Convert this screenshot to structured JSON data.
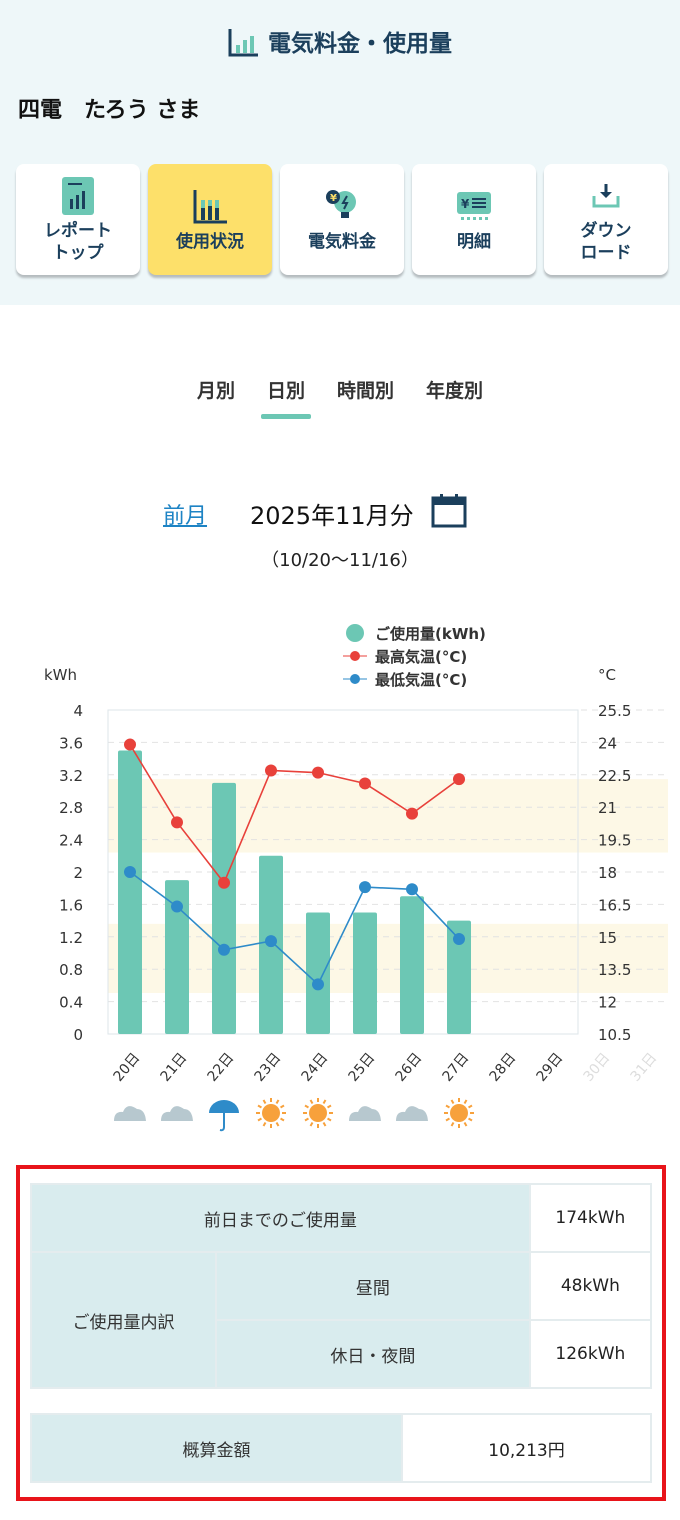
{
  "header": {
    "title": "電気料金・使用量",
    "user": "四電　たろう さま"
  },
  "nav": [
    {
      "label": "レポート\nトップ",
      "icon": "report-icon"
    },
    {
      "label": "使用状況",
      "icon": "usage-chart-icon",
      "active": true
    },
    {
      "label": "電気料金",
      "icon": "bulb-yen-icon"
    },
    {
      "label": "明細",
      "icon": "statement-icon"
    },
    {
      "label": "ダウン\nロード",
      "icon": "download-icon"
    }
  ],
  "tabs": [
    {
      "label": "月別"
    },
    {
      "label": "日別",
      "active": true
    },
    {
      "label": "時間別"
    },
    {
      "label": "年度別"
    }
  ],
  "period": {
    "prev": "前月",
    "month": "2025年11月分",
    "range": "（10/20〜11/16）"
  },
  "chart_data": {
    "type": "bar+line",
    "categories": [
      "20日",
      "21日",
      "22日",
      "23日",
      "24日",
      "25日",
      "26日",
      "27日",
      "28日",
      "29日",
      "30日",
      "31日"
    ],
    "series": [
      {
        "name": "ご使用量(kWh)",
        "type": "bar",
        "axis": "left",
        "color": "#6cc7b4",
        "values": [
          3.5,
          1.9,
          3.1,
          2.2,
          1.5,
          1.5,
          1.7,
          1.4,
          null,
          null,
          null,
          null
        ]
      },
      {
        "name": "最高気温(°C)",
        "type": "line",
        "axis": "right",
        "color": "#e8413b",
        "values": [
          23.9,
          20.3,
          17.5,
          22.7,
          22.6,
          22.1,
          20.7,
          22.3,
          null,
          null,
          null,
          null
        ]
      },
      {
        "name": "最低気温(°C)",
        "type": "line",
        "axis": "right",
        "color": "#2e8bc9",
        "values": [
          18.0,
          16.4,
          14.4,
          14.8,
          12.8,
          17.3,
          17.2,
          14.9,
          null,
          null,
          null,
          null
        ]
      }
    ],
    "ylabel_left": "kWh",
    "ylabel_right": "°C",
    "ylim_left": [
      0,
      4
    ],
    "yticks_left": [
      "0",
      "0.4",
      "0.8",
      "1.2",
      "1.6",
      "2",
      "2.4",
      "2.8",
      "3.2",
      "3.6",
      "4"
    ],
    "ylim_right": [
      10.5,
      25.5
    ],
    "yticks_right": [
      "10.5",
      "12",
      "13.5",
      "15",
      "16.5",
      "18",
      "19.5",
      "21",
      "22.5",
      "24",
      "25.5"
    ],
    "bands_right": [
      [
        18.9,
        22.3
      ],
      [
        12.4,
        15.6
      ]
    ],
    "weather": [
      "cloudy",
      "cloudy",
      "rain",
      "sunny",
      "sunny",
      "cloudy",
      "cloudy",
      "sunny"
    ],
    "legend": "top-right",
    "grid": true
  },
  "summary": {
    "total_label": "前日までのご使用量",
    "total": "174kWh",
    "breakdown_label": "ご使用量内訳",
    "day_label": "昼間",
    "day": "48kWh",
    "night_label": "休日・夜間",
    "night": "126kWh",
    "cost_label": "概算金額",
    "cost": "10,213円"
  }
}
